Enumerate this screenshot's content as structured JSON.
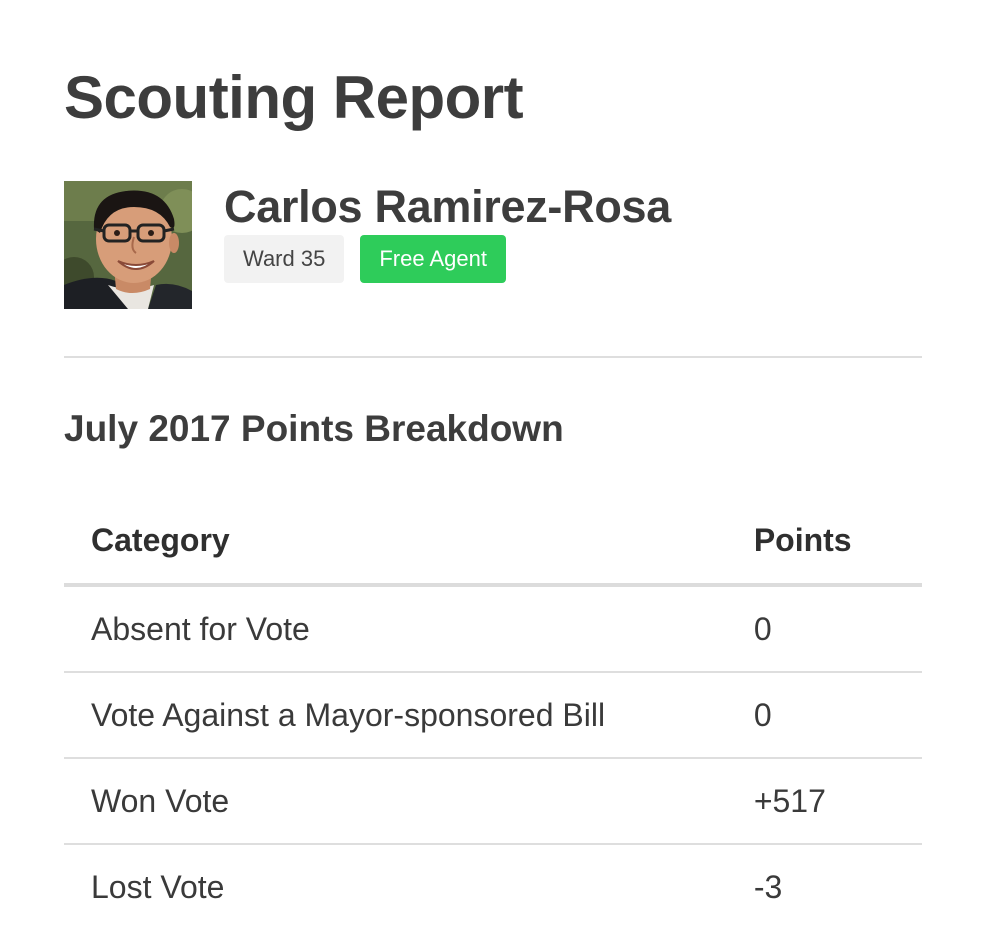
{
  "page": {
    "title": "Scouting Report"
  },
  "player": {
    "name": "Carlos Ramirez-Rosa",
    "ward": "Ward 35",
    "status": "Free Agent",
    "status_color": "#2ecc5a"
  },
  "breakdown": {
    "title": "July 2017 Points Breakdown",
    "columns": {
      "category": "Category",
      "points": "Points"
    },
    "rows": [
      {
        "category": "Absent for Vote",
        "points": "0"
      },
      {
        "category": "Vote Against a Mayor-sponsored Bill",
        "points": "0"
      },
      {
        "category": "Won Vote",
        "points": "+517"
      },
      {
        "category": "Lost Vote",
        "points": "-3"
      }
    ]
  }
}
